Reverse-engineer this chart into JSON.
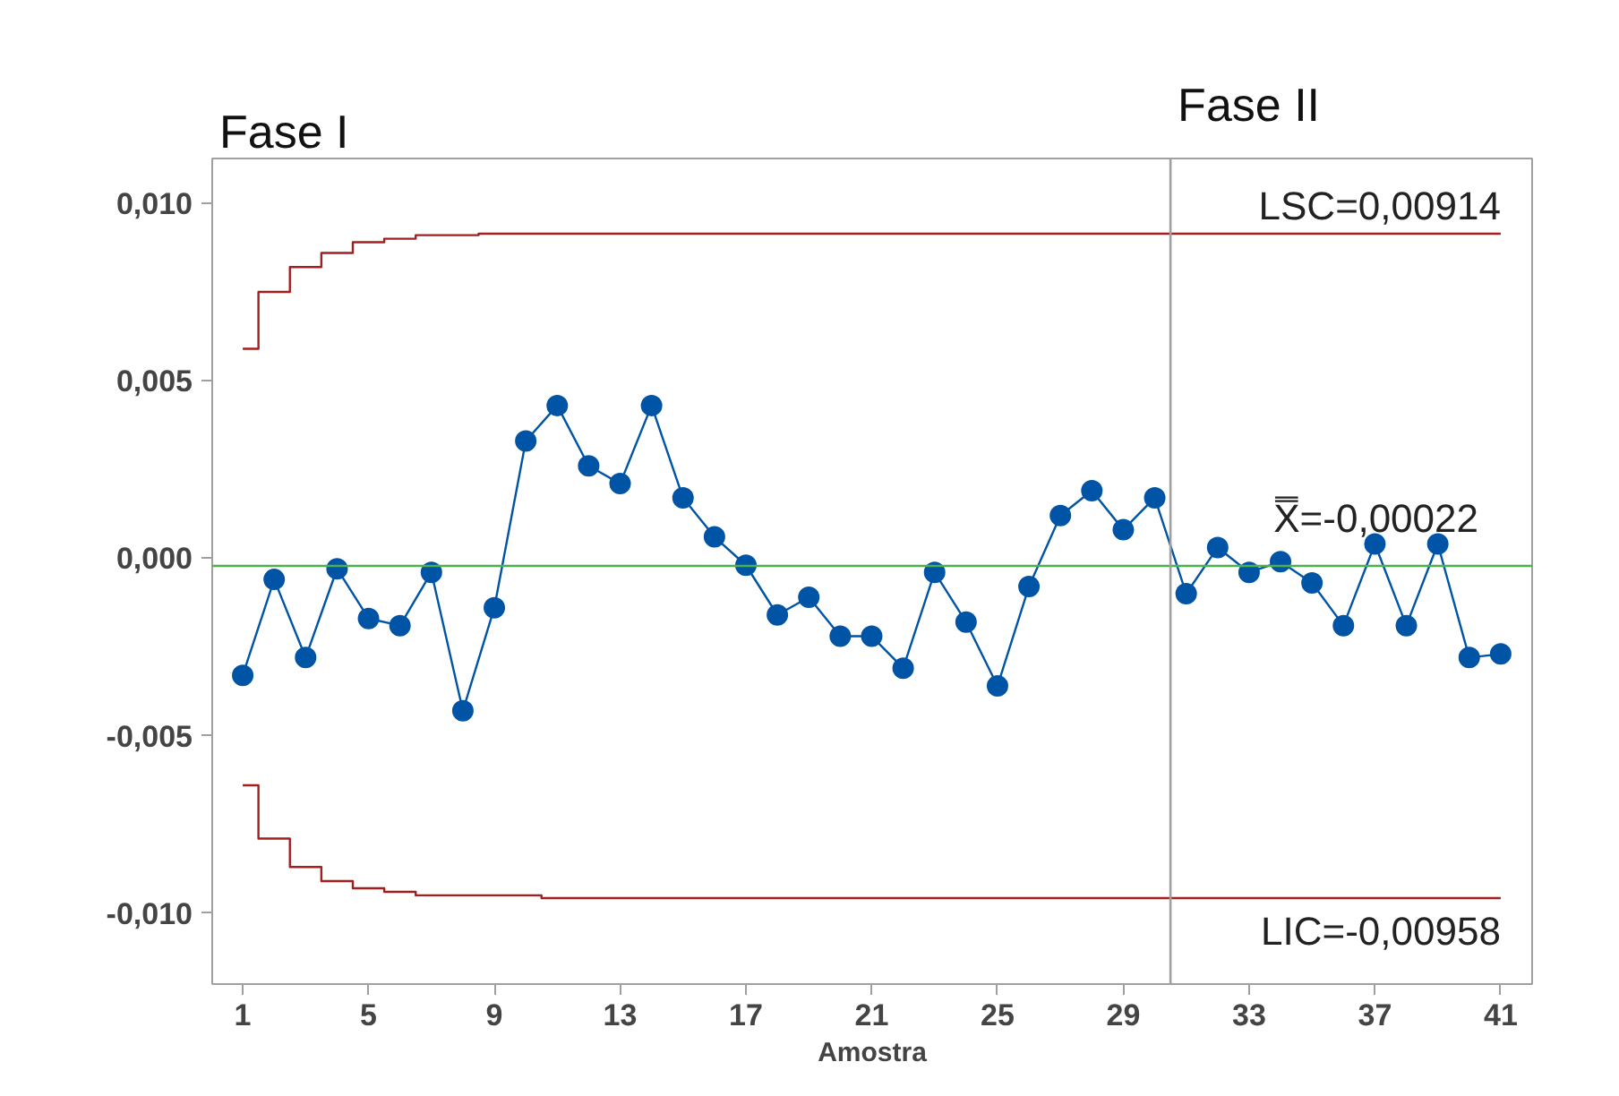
{
  "chart_data": {
    "type": "line",
    "xlabel": "Amostra",
    "x": [
      1,
      2,
      3,
      4,
      5,
      6,
      7,
      8,
      9,
      10,
      11,
      12,
      13,
      14,
      15,
      16,
      17,
      18,
      19,
      20,
      21,
      22,
      23,
      24,
      25,
      26,
      27,
      28,
      29,
      30,
      31,
      32,
      33,
      34,
      35,
      36,
      37,
      38,
      39,
      40,
      41
    ],
    "series": [
      {
        "marker": "circle",
        "color": "#0054a6",
        "values": [
          -0.0033,
          -0.0006,
          -0.0028,
          -0.0003,
          -0.0017,
          -0.0019,
          -0.0004,
          -0.0043,
          -0.0014,
          0.0033,
          0.0043,
          0.0026,
          0.0021,
          0.0043,
          0.0017,
          0.0006,
          -0.0002,
          -0.0016,
          -0.0011,
          -0.0022,
          -0.0022,
          -0.0031,
          -0.0004,
          -0.0018,
          -0.0036,
          -0.0008,
          0.0012,
          0.0019,
          0.0008,
          0.0017,
          -0.001,
          0.0003,
          -0.0004,
          -0.0001,
          -0.0007,
          -0.0019,
          0.0004,
          -0.0019,
          0.0004,
          -0.0028,
          -0.0027
        ]
      },
      {
        "type": "step",
        "marker": "none",
        "color": "#a31f1f",
        "values": [
          0.0059,
          0.0075,
          0.0082,
          0.0086,
          0.0089,
          0.009,
          0.0091,
          0.0091,
          0.00914,
          0.00914,
          0.00914,
          0.00914,
          0.00914,
          0.00914,
          0.00914,
          0.00914,
          0.00914,
          0.00914,
          0.00914,
          0.00914,
          0.00914,
          0.00914,
          0.00914,
          0.00914,
          0.00914,
          0.00914,
          0.00914,
          0.00914,
          0.00914,
          0.00914,
          0.00914,
          0.00914,
          0.00914,
          0.00914,
          0.00914,
          0.00914,
          0.00914,
          0.00914,
          0.00914,
          0.00914,
          0.00914
        ]
      },
      {
        "type": "step",
        "marker": "none",
        "color": "#a31f1f",
        "values": [
          -0.0064,
          -0.0079,
          -0.0087,
          -0.0091,
          -0.0093,
          -0.0094,
          -0.0095,
          -0.0095,
          -0.0095,
          -0.0095,
          -0.00958,
          -0.00958,
          -0.00958,
          -0.00958,
          -0.00958,
          -0.00958,
          -0.00958,
          -0.00958,
          -0.00958,
          -0.00958,
          -0.00958,
          -0.00958,
          -0.00958,
          -0.00958,
          -0.00958,
          -0.00958,
          -0.00958,
          -0.00958,
          -0.00958,
          -0.00958,
          -0.00958,
          -0.00958,
          -0.00958,
          -0.00958,
          -0.00958,
          -0.00958,
          -0.00958,
          -0.00958,
          -0.00958,
          -0.00958,
          -0.00958
        ]
      }
    ],
    "xlim": [
      0.03,
      42
    ],
    "xticks": [
      1,
      5,
      9,
      13,
      17,
      21,
      25,
      29,
      33,
      37,
      41
    ],
    "ylim": [
      -0.012,
      0.01126
    ],
    "yticks": [
      {
        "value": -0.01,
        "label": "-0,010"
      },
      {
        "value": -0.005,
        "label": "-0,005"
      },
      {
        "value": 0,
        "label": "0,000"
      },
      {
        "value": 0.005,
        "label": "0,005"
      },
      {
        "value": 0.01,
        "label": "0,010"
      }
    ],
    "ref_lines": [
      {
        "axis": "y",
        "value": -0.00022,
        "label": "X̿=-0,00022",
        "color": "#4caf50"
      },
      {
        "axis": "x",
        "value": 30.5,
        "label": null,
        "color": "#a0a0a0"
      }
    ],
    "annotations": [
      "Fase I",
      "Fase II",
      {
        "text": "LSC=0,00914",
        "x": 41,
        "y": 0.00914
      },
      {
        "text": "LIC=-0,00958",
        "x": 41,
        "y": -0.00958
      }
    ],
    "grid": false
  }
}
